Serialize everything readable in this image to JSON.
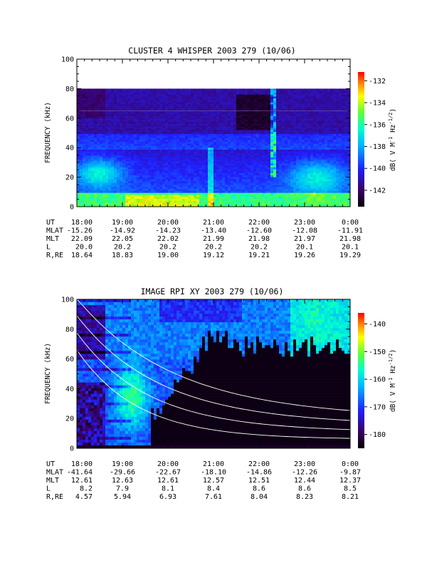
{
  "chart_data": [
    {
      "type": "heatmap",
      "title": "CLUSTER 4 WHISPER 2003 279 (10/06)",
      "ylabel": "FREQUENCY (kHz)",
      "yticks": [
        "0",
        "20",
        "40",
        "60",
        "80",
        "100"
      ],
      "ylim": [
        0,
        100
      ],
      "data_max_khz": 80,
      "xlim": [
        "18:00",
        "0:00"
      ],
      "xticks": [
        "18:00",
        "19:00",
        "20:00",
        "21:00",
        "22:00",
        "23:00",
        "0:00"
      ],
      "colorbar": {
        "label_parts": [
          "dB( V M",
          "-1",
          " Hz",
          "-1/2",
          ")"
        ],
        "ticks": [
          "-132",
          "-134",
          "-136",
          "-138",
          "-140",
          "-142"
        ],
        "range": [
          -143.5,
          -131.2
        ]
      },
      "ephemeris": [
        {
          "name": "UT",
          "values": [
            "18:00",
            "19:00",
            "20:00",
            "21:00",
            "22:00",
            "23:00",
            "0:00"
          ]
        },
        {
          "name": "MLAT",
          "values": [
            "-15.26",
            "-14.92",
            "-14.23",
            "-13.40",
            "-12.60",
            "-12.08",
            "-11.91"
          ]
        },
        {
          "name": "MLT",
          "values": [
            "22.09",
            "22.05",
            "22.02",
            "21.99",
            "21.98",
            "21.97",
            "21.98"
          ]
        },
        {
          "name": "L",
          "values": [
            "20.0",
            "20.2",
            "20.2",
            "20.2",
            "20.2",
            "20.1",
            "20.1"
          ]
        },
        {
          "name": "R,RE",
          "values": [
            "18.64",
            "18.83",
            "19.00",
            "19.12",
            "19.21",
            "19.26",
            "19.29"
          ]
        }
      ]
    },
    {
      "type": "heatmap",
      "title": "IMAGE RPI XY 2003 279 (10/06)",
      "ylabel": "FREQUENCY (kHz)",
      "yticks": [
        "0",
        "20",
        "40",
        "60",
        "80",
        "100"
      ],
      "ylim": [
        0,
        100
      ],
      "xlim": [
        "18:00",
        "0:00"
      ],
      "xticks": [
        "18:00",
        "19:00",
        "20:00",
        "21:00",
        "22:00",
        "23:00",
        "0:00"
      ],
      "colorbar": {
        "label_parts": [
          "dB( V M",
          "-1",
          " Hz",
          "-1/2",
          ")"
        ],
        "ticks": [
          "-140",
          "-150",
          "-160",
          "-170",
          "-180"
        ],
        "range": [
          -185,
          -136
        ]
      },
      "ephemeris": [
        {
          "name": "UT",
          "values": [
            "18:00",
            "19:00",
            "20:00",
            "21:00",
            "22:00",
            "23:00",
            "0:00"
          ]
        },
        {
          "name": "MLAT",
          "values": [
            "-41.64",
            "-29.66",
            "-22.67",
            "-18.10",
            "-14.86",
            "-12.26",
            "-9.87"
          ]
        },
        {
          "name": "MLT",
          "values": [
            "12.61",
            "12.63",
            "12.61",
            "12.57",
            "12.51",
            "12.44",
            "12.37"
          ]
        },
        {
          "name": "L",
          "values": [
            "8.2",
            "7.9",
            "8.1",
            "8.4",
            "8.6",
            "8.6",
            "8.5"
          ]
        },
        {
          "name": "R,RE",
          "values": [
            "4.57",
            "5.94",
            "6.93",
            "7.61",
            "8.04",
            "8.23",
            "8.21"
          ]
        }
      ]
    }
  ]
}
